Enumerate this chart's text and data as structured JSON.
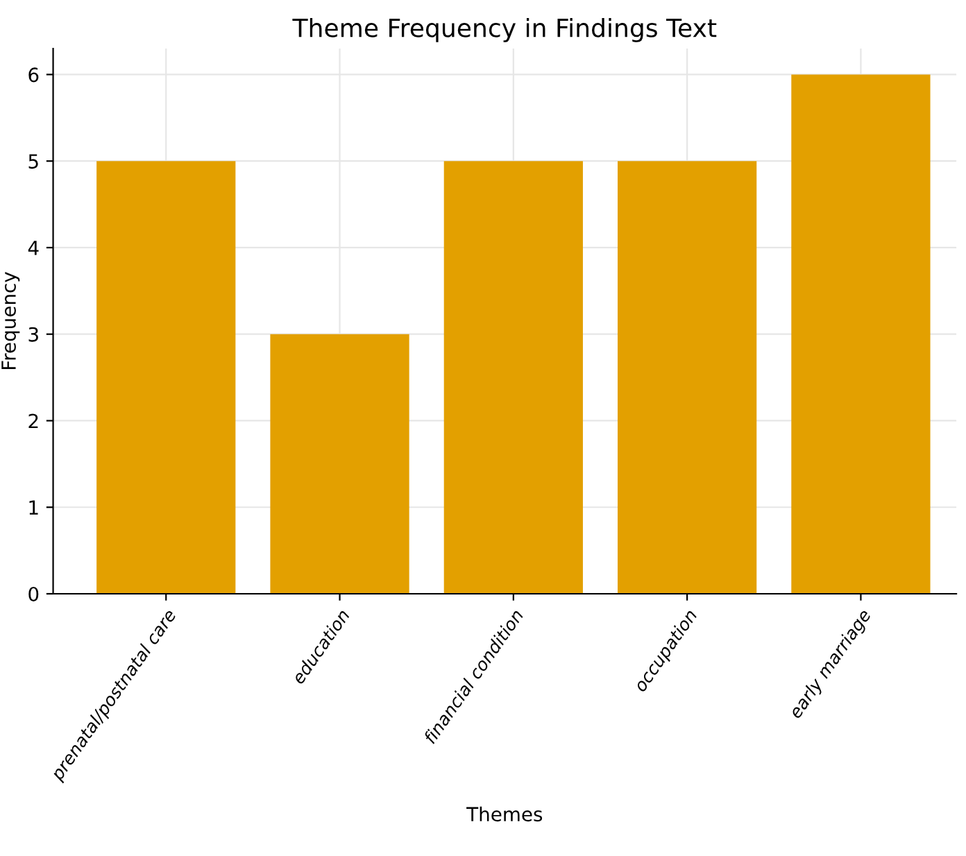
{
  "chart_data": {
    "type": "bar",
    "title": "Theme Frequency in Findings Text",
    "xlabel": "Themes",
    "ylabel": "Frequency",
    "categories": [
      "prenatal/postnatal care",
      "education",
      "financial condition",
      "occupation",
      "early marriage"
    ],
    "values": [
      5,
      3,
      5,
      5,
      6
    ],
    "color": "#e3a000",
    "ylim": [
      0,
      6.3
    ],
    "yticks": [
      0,
      1,
      2,
      3,
      4,
      5,
      6
    ],
    "grid": true
  }
}
